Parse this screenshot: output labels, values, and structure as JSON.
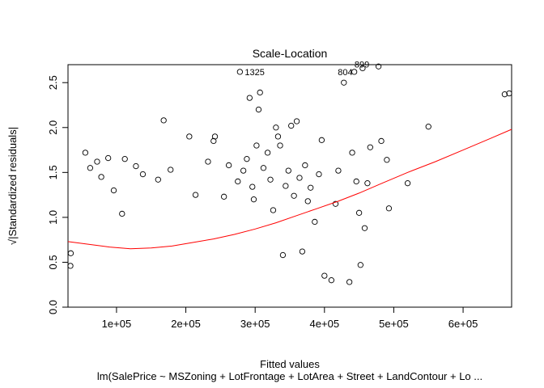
{
  "chart_data": {
    "type": "scatter",
    "title": "Scale-Location",
    "xlabel": "Fitted values",
    "ylabel": "√|Standardized residuals|",
    "subtitle": "lm(SalePrice ~ MSZoning + LotFrontage + LotArea + Street + LandContour + Lo ...",
    "xlim": [
      30000,
      670000
    ],
    "ylim": [
      0.0,
      2.7
    ],
    "x_ticks": [
      100000,
      200000,
      300000,
      400000,
      500000,
      600000
    ],
    "x_tick_labels": [
      "1e+05",
      "2e+05",
      "3e+05",
      "4e+05",
      "5e+05",
      "6e+05"
    ],
    "y_ticks": [
      0.0,
      0.5,
      1.0,
      1.5,
      2.0,
      2.5
    ],
    "y_tick_labels": [
      "0.0",
      "0.5",
      "1.0",
      "1.5",
      "2.0",
      "2.5"
    ],
    "grid": false,
    "smoother": {
      "name": "lowess",
      "color": "#ff0000",
      "x": [
        30000,
        60000,
        90000,
        120000,
        150000,
        180000,
        210000,
        240000,
        270000,
        300000,
        330000,
        360000,
        390000,
        420000,
        450000,
        480000,
        520000,
        560000,
        600000,
        640000,
        670000
      ],
      "y": [
        0.73,
        0.7,
        0.67,
        0.65,
        0.66,
        0.68,
        0.72,
        0.76,
        0.81,
        0.87,
        0.94,
        1.02,
        1.1,
        1.18,
        1.27,
        1.37,
        1.5,
        1.62,
        1.75,
        1.88,
        1.98
      ]
    },
    "points": [
      {
        "x": 27000,
        "y": 0.46
      },
      {
        "x": 34000,
        "y": 0.6
      },
      {
        "x": 55000,
        "y": 1.72
      },
      {
        "x": 62000,
        "y": 1.55
      },
      {
        "x": 72000,
        "y": 1.62
      },
      {
        "x": 78000,
        "y": 1.45
      },
      {
        "x": 88000,
        "y": 1.66
      },
      {
        "x": 96000,
        "y": 1.3
      },
      {
        "x": 108000,
        "y": 1.04
      },
      {
        "x": 112000,
        "y": 1.65
      },
      {
        "x": 128000,
        "y": 1.57
      },
      {
        "x": 138000,
        "y": 1.48
      },
      {
        "x": 160000,
        "y": 1.42
      },
      {
        "x": 168000,
        "y": 2.08
      },
      {
        "x": 178000,
        "y": 1.53
      },
      {
        "x": 205000,
        "y": 1.9
      },
      {
        "x": 214000,
        "y": 1.25
      },
      {
        "x": 232000,
        "y": 1.62
      },
      {
        "x": 240000,
        "y": 1.85
      },
      {
        "x": 242000,
        "y": 1.9
      },
      {
        "x": 255000,
        "y": 1.23
      },
      {
        "x": 262000,
        "y": 1.58
      },
      {
        "x": 275000,
        "y": 1.4
      },
      {
        "x": 278000,
        "y": 2.62,
        "label": "1325"
      },
      {
        "x": 283000,
        "y": 1.52
      },
      {
        "x": 288000,
        "y": 1.65
      },
      {
        "x": 292000,
        "y": 2.33
      },
      {
        "x": 296000,
        "y": 1.34
      },
      {
        "x": 298000,
        "y": 1.2
      },
      {
        "x": 302000,
        "y": 1.8
      },
      {
        "x": 305000,
        "y": 2.2
      },
      {
        "x": 307000,
        "y": 2.39
      },
      {
        "x": 312000,
        "y": 1.55
      },
      {
        "x": 318000,
        "y": 1.72
      },
      {
        "x": 322000,
        "y": 1.42
      },
      {
        "x": 326000,
        "y": 1.08
      },
      {
        "x": 330000,
        "y": 2.0
      },
      {
        "x": 333000,
        "y": 1.9
      },
      {
        "x": 336000,
        "y": 1.8
      },
      {
        "x": 340000,
        "y": 0.58
      },
      {
        "x": 344000,
        "y": 1.35
      },
      {
        "x": 348000,
        "y": 1.52
      },
      {
        "x": 352000,
        "y": 2.02
      },
      {
        "x": 356000,
        "y": 1.24
      },
      {
        "x": 360000,
        "y": 2.07
      },
      {
        "x": 364000,
        "y": 1.44
      },
      {
        "x": 368000,
        "y": 0.62
      },
      {
        "x": 372000,
        "y": 1.58
      },
      {
        "x": 376000,
        "y": 1.18
      },
      {
        "x": 380000,
        "y": 1.33
      },
      {
        "x": 386000,
        "y": 0.95
      },
      {
        "x": 392000,
        "y": 1.48
      },
      {
        "x": 396000,
        "y": 1.86
      },
      {
        "x": 400000,
        "y": 0.35
      },
      {
        "x": 410000,
        "y": 0.3
      },
      {
        "x": 416000,
        "y": 1.15
      },
      {
        "x": 420000,
        "y": 1.52
      },
      {
        "x": 428000,
        "y": 2.5
      },
      {
        "x": 436000,
        "y": 0.28
      },
      {
        "x": 440000,
        "y": 1.72
      },
      {
        "x": 443000,
        "y": 2.62,
        "label": "804"
      },
      {
        "x": 446000,
        "y": 1.4
      },
      {
        "x": 450000,
        "y": 1.05
      },
      {
        "x": 452000,
        "y": 0.47
      },
      {
        "x": 455000,
        "y": 2.66,
        "label": "899"
      },
      {
        "x": 458000,
        "y": 0.88
      },
      {
        "x": 462000,
        "y": 1.38
      },
      {
        "x": 466000,
        "y": 1.78
      },
      {
        "x": 478000,
        "y": 2.68
      },
      {
        "x": 482000,
        "y": 1.85
      },
      {
        "x": 490000,
        "y": 1.64
      },
      {
        "x": 493000,
        "y": 1.1
      },
      {
        "x": 520000,
        "y": 1.38
      },
      {
        "x": 550000,
        "y": 2.01
      },
      {
        "x": 660000,
        "y": 2.37
      },
      {
        "x": 672000,
        "y": 2.38
      }
    ]
  }
}
